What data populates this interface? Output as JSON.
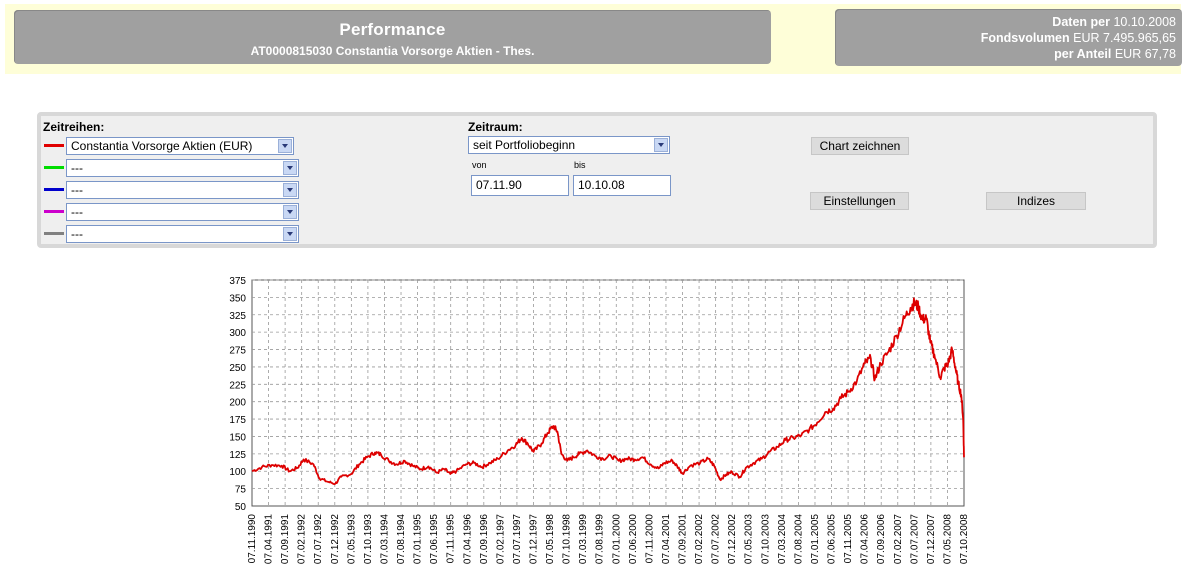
{
  "header": {
    "title": "Performance",
    "subtitle": "AT0000815030 Constantia Vorsorge Aktien - Thes."
  },
  "info": {
    "daten_label": "Daten per",
    "daten_value": "10.10.2008",
    "fondsvolumen_label": "Fondsvolumen",
    "fondsvolumen_value": "EUR 7.495.965,65",
    "anteil_label": "per Anteil",
    "anteil_value": "EUR 67,78"
  },
  "form": {
    "zeitreihen_label": "Zeitreihen:",
    "series_selects": [
      {
        "value": "Constantia Vorsorge Aktien (EUR)",
        "color": "#e00000"
      },
      {
        "value": "---",
        "color": "#00dd00"
      },
      {
        "value": "---",
        "color": "#0000cc"
      },
      {
        "value": "---",
        "color": "#cc00cc"
      },
      {
        "value": "---",
        "color": "#808080"
      }
    ],
    "zeitraum_label": "Zeitraum:",
    "zeitraum_value": "seit Portfoliobeginn",
    "von_label": "von",
    "von_value": "07.11.90",
    "bis_label": "bis",
    "bis_value": "10.10.08",
    "chart_button": "Chart zeichnen",
    "settings_button": "Einstellungen",
    "indizes_button": "Indizes"
  },
  "chart_data": {
    "type": "line",
    "title": "",
    "xlabel": "",
    "ylabel": "",
    "ylim": [
      50,
      375
    ],
    "yticks": [
      50,
      75,
      100,
      125,
      150,
      175,
      200,
      225,
      250,
      275,
      300,
      325,
      350,
      375
    ],
    "grid": true,
    "line_color": "#dd0000",
    "x_labels": [
      "07.11.1990",
      "07.04.1991",
      "07.09.1991",
      "07.02.1992",
      "07.07.1992",
      "07.12.1992",
      "07.05.1993",
      "07.10.1993",
      "07.03.1994",
      "07.08.1994",
      "07.01.1995",
      "07.06.1995",
      "07.11.1995",
      "07.04.1996",
      "07.09.1996",
      "07.02.1997",
      "07.07.1997",
      "07.12.1997",
      "07.05.1998",
      "07.10.1998",
      "07.03.1999",
      "07.08.1999",
      "07.01.2000",
      "07.06.2000",
      "07.11.2000",
      "07.04.2001",
      "07.09.2001",
      "07.02.2002",
      "07.07.2002",
      "07.12.2002",
      "07.05.2003",
      "07.10.2003",
      "07.03.2004",
      "07.08.2004",
      "07.01.2005",
      "07.06.2005",
      "07.11.2005",
      "07.04.2006",
      "07.09.2006",
      "07.02.2007",
      "07.07.2007",
      "07.12.2007",
      "07.05.2008",
      "07.10.2008"
    ],
    "series": [
      {
        "values": [
          [
            1990.85,
            100
          ],
          [
            1991.1,
            106
          ],
          [
            1991.35,
            109
          ],
          [
            1991.6,
            108
          ],
          [
            1991.8,
            100
          ],
          [
            1992.0,
            105
          ],
          [
            1992.15,
            117
          ],
          [
            1992.4,
            110
          ],
          [
            1992.55,
            90
          ],
          [
            1992.75,
            85
          ],
          [
            1992.95,
            82
          ],
          [
            1993.1,
            92
          ],
          [
            1993.35,
            96
          ],
          [
            1993.55,
            110
          ],
          [
            1993.75,
            120
          ],
          [
            1993.95,
            127
          ],
          [
            1994.1,
            124
          ],
          [
            1994.3,
            115
          ],
          [
            1994.5,
            110
          ],
          [
            1994.7,
            115
          ],
          [
            1994.9,
            108
          ],
          [
            1995.1,
            103
          ],
          [
            1995.3,
            107
          ],
          [
            1995.5,
            98
          ],
          [
            1995.7,
            103
          ],
          [
            1995.85,
            96
          ],
          [
            1996.0,
            100
          ],
          [
            1996.25,
            110
          ],
          [
            1996.45,
            112
          ],
          [
            1996.65,
            106
          ],
          [
            1996.85,
            112
          ],
          [
            1997.05,
            118
          ],
          [
            1997.3,
            130
          ],
          [
            1997.5,
            138
          ],
          [
            1997.65,
            148
          ],
          [
            1997.8,
            140
          ],
          [
            1997.95,
            128
          ],
          [
            1998.15,
            140
          ],
          [
            1998.3,
            155
          ],
          [
            1998.45,
            165
          ],
          [
            1998.55,
            157
          ],
          [
            1998.65,
            125
          ],
          [
            1998.8,
            115
          ],
          [
            1998.95,
            120
          ],
          [
            1999.1,
            125
          ],
          [
            1999.3,
            130
          ],
          [
            1999.5,
            122
          ],
          [
            1999.7,
            118
          ],
          [
            1999.9,
            122
          ],
          [
            2000.1,
            115
          ],
          [
            2000.3,
            118
          ],
          [
            2000.5,
            117
          ],
          [
            2000.7,
            120
          ],
          [
            2000.9,
            110
          ],
          [
            2001.1,
            104
          ],
          [
            2001.25,
            112
          ],
          [
            2001.45,
            115
          ],
          [
            2001.6,
            105
          ],
          [
            2001.7,
            97
          ],
          [
            2001.9,
            108
          ],
          [
            2002.15,
            112
          ],
          [
            2002.35,
            118
          ],
          [
            2002.5,
            108
          ],
          [
            2002.65,
            88
          ],
          [
            2002.8,
            95
          ],
          [
            2002.95,
            99
          ],
          [
            2003.15,
            92
          ],
          [
            2003.3,
            105
          ],
          [
            2003.5,
            112
          ],
          [
            2003.7,
            118
          ],
          [
            2003.9,
            128
          ],
          [
            2004.1,
            135
          ],
          [
            2004.3,
            145
          ],
          [
            2004.5,
            148
          ],
          [
            2004.7,
            152
          ],
          [
            2004.9,
            160
          ],
          [
            2005.1,
            170
          ],
          [
            2005.3,
            185
          ],
          [
            2005.5,
            190
          ],
          [
            2005.7,
            205
          ],
          [
            2005.9,
            215
          ],
          [
            2006.1,
            230
          ],
          [
            2006.3,
            255
          ],
          [
            2006.45,
            262
          ],
          [
            2006.55,
            232
          ],
          [
            2006.7,
            255
          ],
          [
            2006.9,
            272
          ],
          [
            2007.1,
            295
          ],
          [
            2007.3,
            320
          ],
          [
            2007.45,
            335
          ],
          [
            2007.55,
            342
          ],
          [
            2007.65,
            336
          ],
          [
            2007.75,
            318
          ],
          [
            2007.85,
            320
          ],
          [
            2007.95,
            285
          ],
          [
            2008.05,
            268
          ],
          [
            2008.2,
            235
          ],
          [
            2008.3,
            248
          ],
          [
            2008.4,
            255
          ],
          [
            2008.5,
            275
          ],
          [
            2008.58,
            250
          ],
          [
            2008.65,
            228
          ],
          [
            2008.73,
            210
          ],
          [
            2008.78,
            175
          ],
          [
            2008.8,
            120
          ]
        ]
      }
    ]
  }
}
